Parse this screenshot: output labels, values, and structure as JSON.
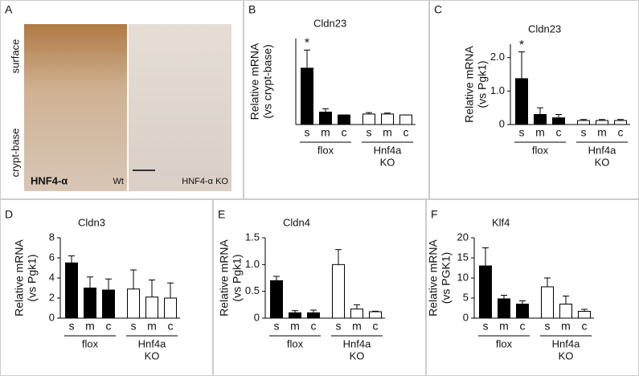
{
  "image_panel": {
    "letter": "A",
    "side_labels": [
      "surface",
      "crypt-base"
    ],
    "stain": "HNF4-α",
    "left_label": "Wt",
    "right_label": "HNF4-α KO"
  },
  "chart_data": [
    {
      "type": "bar",
      "panel": "B",
      "title": "Cldn23",
      "ylabel": [
        "Relative mRNA",
        "(vs crypt-base)"
      ],
      "categories": [
        "s",
        "m",
        "c",
        "s",
        "m",
        "c"
      ],
      "groups": [
        [
          "flox"
        ],
        [
          "Hnf4a",
          "KO"
        ]
      ],
      "values": [
        5.9,
        1.3,
        1.0,
        1.1,
        1.1,
        1.0
      ],
      "errors": [
        1.9,
        0.35,
        0,
        0.15,
        0.1,
        0
      ],
      "markers": [
        "*",
        null,
        null,
        null,
        null,
        null
      ],
      "colors": [
        "#000",
        "#000",
        "#000",
        "#fff",
        "#fff",
        "#fff"
      ],
      "ylim": [
        0,
        9
      ]
    },
    {
      "type": "bar",
      "panel": "C",
      "title": "Cldn23",
      "ylabel": [
        "Relative mRNA",
        "(vs Pgk1)"
      ],
      "categories": [
        "s",
        "m",
        "c",
        "s",
        "m",
        "c"
      ],
      "groups": [
        [
          "flox"
        ],
        [
          "Hnf4a",
          "KO"
        ]
      ],
      "values": [
        1.37,
        0.3,
        0.2,
        0.12,
        0.12,
        0.12
      ],
      "errors": [
        0.8,
        0.2,
        0.1,
        0.03,
        0.03,
        0.03
      ],
      "markers": [
        "*",
        null,
        null,
        null,
        null,
        null
      ],
      "colors": [
        "#000",
        "#000",
        "#000",
        "#fff",
        "#fff",
        "#fff"
      ],
      "ylim": [
        0,
        2.4
      ],
      "yticks": [
        0,
        {
          "value": 1,
          "label": "1.0"
        },
        {
          "value": 2,
          "label": "2.0"
        }
      ]
    },
    {
      "type": "bar",
      "panel": "D",
      "title": "Cldn3",
      "ylabel": [
        "Relative mRNA",
        "(vs Pgk1)"
      ],
      "categories": [
        "s",
        "m",
        "c",
        "s",
        "m",
        "c"
      ],
      "groups": [
        [
          "flox"
        ],
        [
          "Hnf4a",
          "KO"
        ]
      ],
      "values": [
        5.5,
        3.0,
        2.8,
        2.9,
        2.1,
        2.0
      ],
      "errors": [
        0.7,
        1.1,
        1.1,
        1.9,
        1.7,
        1.5
      ],
      "colors": [
        "#000",
        "#000",
        "#000",
        "#fff",
        "#fff",
        "#fff"
      ],
      "ylim": [
        0,
        8
      ],
      "yticks": [
        0,
        2,
        4,
        6,
        8
      ]
    },
    {
      "type": "bar",
      "panel": "E",
      "title": "Cldn4",
      "ylabel": [
        "Relative mRNA",
        "(vs Pgk1)"
      ],
      "categories": [
        "s",
        "m",
        "c",
        "s",
        "m",
        "c"
      ],
      "groups": [
        [
          "flox"
        ],
        [
          "Hnf4a",
          "KO"
        ]
      ],
      "values": [
        0.7,
        0.1,
        0.1,
        1.0,
        0.17,
        0.12
      ],
      "errors": [
        0.08,
        0.04,
        0.05,
        0.28,
        0.08,
        0.01
      ],
      "colors": [
        "#000",
        "#000",
        "#000",
        "#fff",
        "#fff",
        "#fff"
      ],
      "ylim": [
        0,
        1.5
      ],
      "yticks": [
        0,
        0.5,
        {
          "value": 1,
          "label": "1.0"
        },
        1.5
      ]
    },
    {
      "type": "bar",
      "panel": "F",
      "title": "Klf4",
      "ylabel": [
        "Relative mRNA",
        "(vs PGK1)"
      ],
      "categories": [
        "s",
        "m",
        "c",
        "s",
        "m",
        "c"
      ],
      "groups": [
        [
          "flox"
        ],
        [
          "Hnf4a",
          "KO"
        ]
      ],
      "values": [
        13,
        4.8,
        3.5,
        7.8,
        3.5,
        1.7
      ],
      "errors": [
        4.5,
        0.9,
        0.8,
        2.2,
        2.0,
        0.5
      ],
      "colors": [
        "#000",
        "#000",
        "#000",
        "#fff",
        "#fff",
        "#fff"
      ],
      "ylim": [
        0,
        20
      ],
      "yticks": [
        0,
        5,
        10,
        15,
        20
      ]
    }
  ]
}
